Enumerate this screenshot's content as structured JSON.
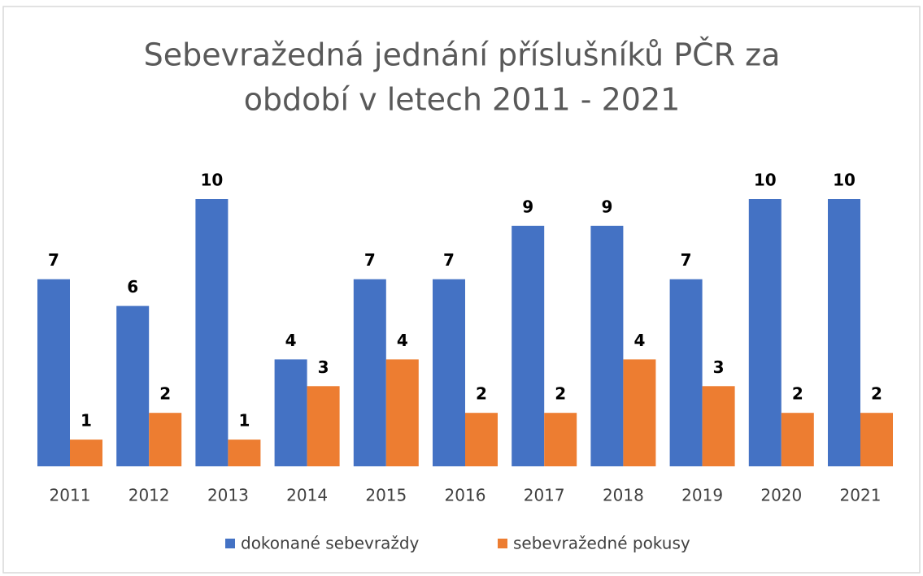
{
  "chart_data": {
    "type": "bar",
    "title": [
      "Sebevražedná jednání příslušníků PČR za",
      "období v letech 2011 - 2021"
    ],
    "categories": [
      "2011",
      "2012",
      "2013",
      "2014",
      "2015",
      "2016",
      "2017",
      "2018",
      "2019",
      "2020",
      "2021"
    ],
    "series": [
      {
        "name": "dokonané sebevraždy",
        "color": "#4472c4",
        "values": [
          7,
          6,
          10,
          4,
          7,
          7,
          9,
          9,
          7,
          10,
          10
        ]
      },
      {
        "name": "sebevražedné pokusy",
        "color": "#ed7d31",
        "values": [
          1,
          2,
          1,
          3,
          4,
          2,
          2,
          4,
          3,
          2,
          2
        ]
      }
    ],
    "legend": "bottom"
  }
}
